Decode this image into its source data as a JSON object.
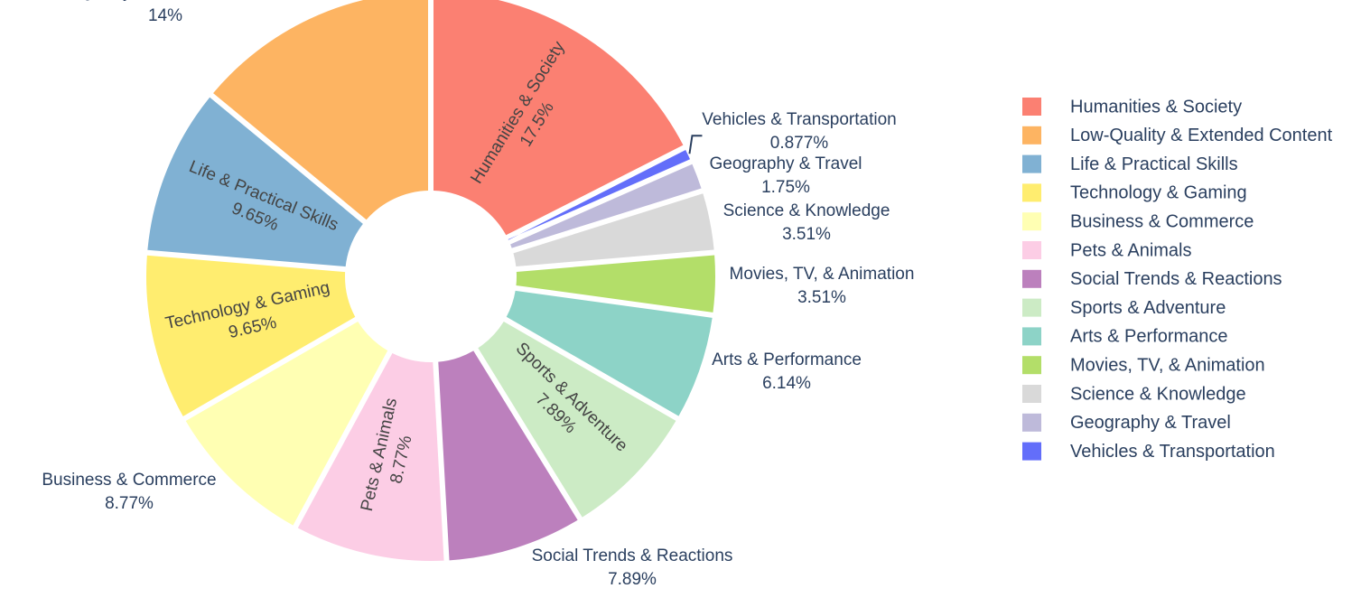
{
  "chart_data": {
    "type": "pie",
    "hole": true,
    "slices": [
      {
        "label": "Humanities & Society",
        "percent_text": "17.5%",
        "value": 17.5,
        "color": "#fb8072",
        "label_position": "inside"
      },
      {
        "label": "Vehicles & Transportation",
        "percent_text": "0.877%",
        "value": 0.877,
        "color": "#636efa",
        "label_position": "outside"
      },
      {
        "label": "Geography & Travel",
        "percent_text": "1.75%",
        "value": 1.75,
        "color": "#bebada",
        "label_position": "outside"
      },
      {
        "label": "Science & Knowledge",
        "percent_text": "3.51%",
        "value": 3.51,
        "color": "#d9d9d9",
        "label_position": "outside"
      },
      {
        "label": "Movies, TV, & Animation",
        "percent_text": "3.51%",
        "value": 3.51,
        "color": "#b3de69",
        "label_position": "outside"
      },
      {
        "label": "Arts & Performance",
        "percent_text": "6.14%",
        "value": 6.14,
        "color": "#8dd3c7",
        "label_position": "outside"
      },
      {
        "label": "Sports & Adventure",
        "percent_text": "7.89%",
        "value": 7.89,
        "color": "#ccebc5",
        "label_position": "inside"
      },
      {
        "label": "Social Trends & Reactions",
        "percent_text": "7.89%",
        "value": 7.89,
        "color": "#bc80bd",
        "label_position": "outside"
      },
      {
        "label": "Pets & Animals",
        "percent_text": "8.77%",
        "value": 8.77,
        "color": "#fccde5",
        "label_position": "inside"
      },
      {
        "label": "Business & Commerce",
        "percent_text": "8.77%",
        "value": 8.77,
        "color": "#ffffb3",
        "label_position": "outside"
      },
      {
        "label": "Technology & Gaming",
        "percent_text": "9.65%",
        "value": 9.65,
        "color": "#ffed6f",
        "label_position": "inside"
      },
      {
        "label": "Life & Practical Skills",
        "percent_text": "9.65%",
        "value": 9.65,
        "color": "#80b1d3",
        "label_position": "inside"
      },
      {
        "label": "Low-Quality & Extended Content",
        "percent_text": "14%",
        "value": 14.0,
        "color": "#fdb462",
        "label_position": "outside"
      }
    ],
    "legend": {
      "placement": "right",
      "items": [
        "Humanities & Society",
        "Low-Quality & Extended Content",
        "Life & Practical Skills",
        "Technology & Gaming",
        "Business & Commerce",
        "Pets & Animals",
        "Social Trends & Reactions",
        "Sports & Adventure",
        "Arts & Performance",
        "Movies, TV, & Animation",
        "Science & Knowledge",
        "Geography & Travel",
        "Vehicles & Transportation"
      ]
    }
  }
}
